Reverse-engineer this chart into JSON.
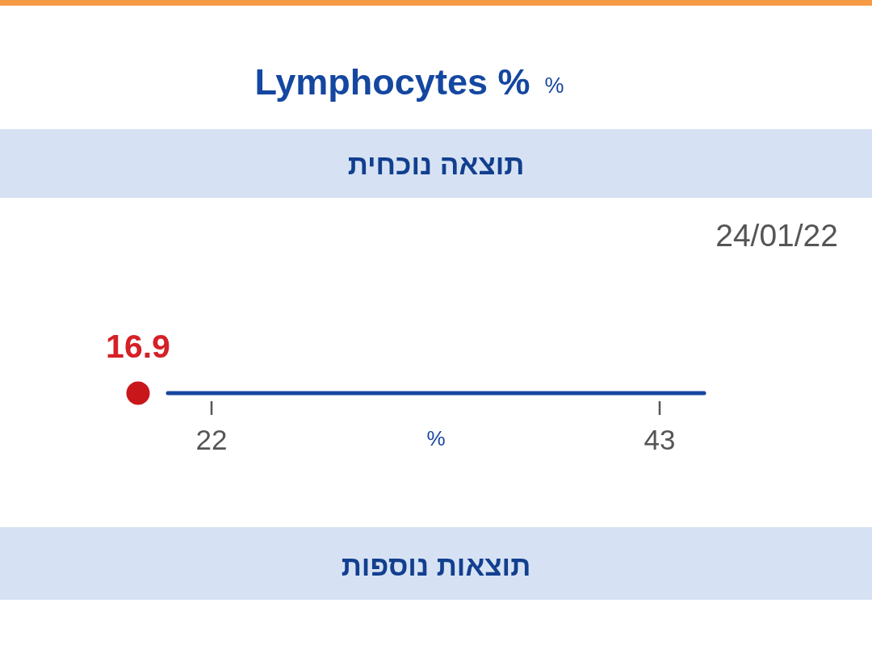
{
  "chart_data": {
    "type": "other",
    "title": "Lymphocytes %",
    "xlabel": "%",
    "values": [
      16.9
    ],
    "color": "#c8161b",
    "data_labels": true,
    "annotations": [
      "%",
      "תוצאה נוכחית",
      "24/01/22",
      "22",
      "43",
      "תוצאות נוספות"
    ]
  }
}
